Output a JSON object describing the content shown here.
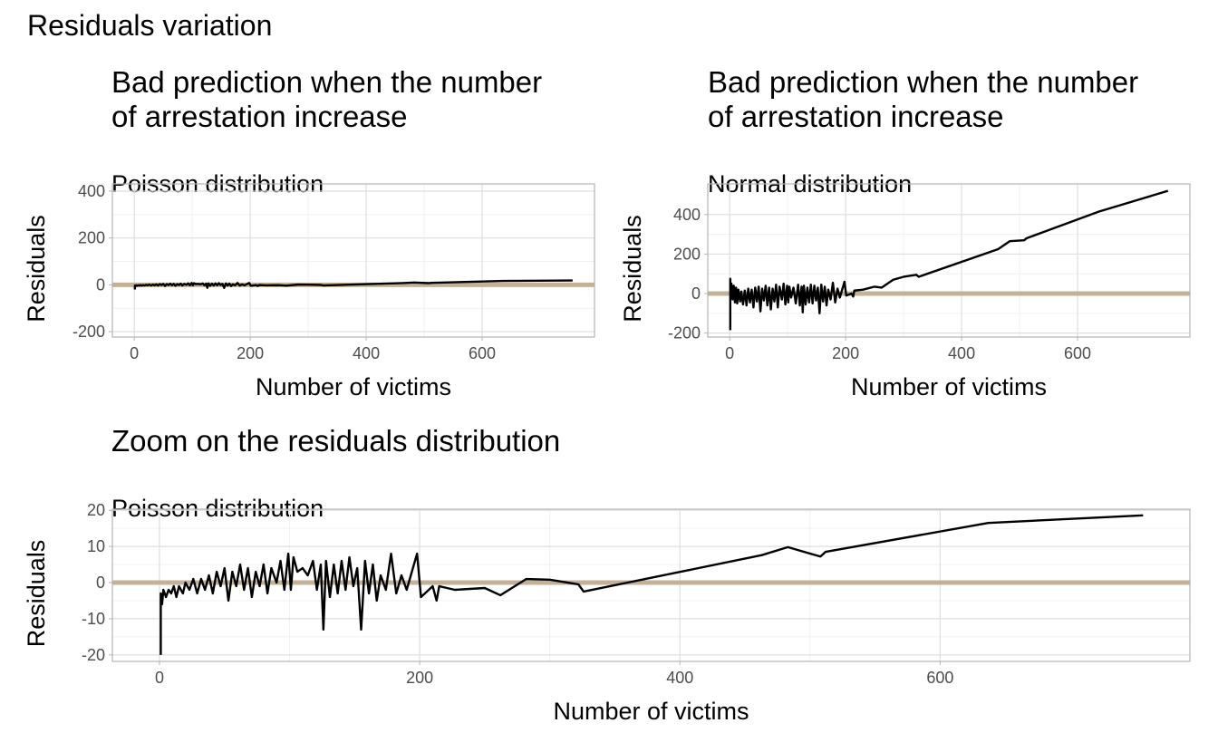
{
  "title": "Residuals variation",
  "chart_data": [
    {
      "type": "line",
      "title": [
        "Bad prediction when the number",
        "of arrestation increase"
      ],
      "subtitle": "Poisson distribution",
      "xlabel": "Number of victims",
      "ylabel": "Residuals",
      "x": [
        1,
        1,
        2,
        3,
        5,
        7,
        9,
        11,
        13,
        15,
        18,
        20,
        23,
        26,
        29,
        32,
        35,
        38,
        41,
        44,
        47,
        50,
        53,
        56,
        59,
        62,
        65,
        68,
        71,
        74,
        77,
        80,
        83,
        86,
        90,
        93,
        96,
        99,
        101,
        103,
        106,
        110,
        114,
        118,
        121,
        124,
        126,
        128,
        131,
        134,
        137,
        140,
        143,
        146,
        149,
        152,
        155,
        158,
        161,
        164,
        167,
        170,
        174,
        178,
        182,
        186,
        190,
        198,
        201,
        210,
        213,
        215,
        227,
        250,
        262,
        282,
        300,
        322,
        326,
        463,
        483,
        508,
        512,
        637,
        756
      ],
      "series": [
        {
          "color": "#000000",
          "values": [
            -20,
            -3,
            -6,
            -2,
            -4,
            -2,
            -3,
            -1,
            -4,
            -1,
            -3,
            0,
            -2,
            1,
            -3,
            1,
            -2,
            2,
            -3,
            3,
            -1,
            4,
            -5,
            3,
            -1,
            5,
            -2,
            4,
            -4,
            3,
            -1,
            5,
            -3,
            4,
            0,
            6,
            -2,
            8,
            -2,
            7,
            3,
            4,
            2,
            6,
            -2,
            5,
            -13,
            6,
            -4,
            5,
            -3,
            6,
            -2,
            7,
            -1,
            4,
            -13,
            6,
            -3,
            5,
            -5,
            2,
            -2,
            8,
            -3,
            2,
            -2,
            8,
            -4,
            -1,
            -5,
            -1,
            -2,
            -1.5,
            -3.5,
            1,
            0.8,
            -0.5,
            -2.5,
            7.6,
            9.8,
            7.2,
            8.5,
            16.5,
            18.6
          ]
        }
      ],
      "xlim": [
        -37.8,
        793.8
      ],
      "ylim": [
        -223,
        431
      ],
      "xticks": [
        0,
        200,
        400,
        600
      ],
      "yticks": [
        -200,
        0,
        200,
        400
      ],
      "grid": true,
      "hline": 0,
      "hline_color": "#c4b096"
    },
    {
      "type": "line",
      "title": [
        "Bad prediction when the number",
        "of arrestation increase"
      ],
      "subtitle": "Normal distribution",
      "xlabel": "Number of victims",
      "ylabel": "Residuals",
      "x": [
        1,
        1,
        2,
        3,
        5,
        7,
        9,
        11,
        13,
        15,
        18,
        20,
        23,
        26,
        29,
        32,
        35,
        38,
        41,
        44,
        47,
        50,
        53,
        56,
        59,
        62,
        65,
        68,
        71,
        74,
        77,
        80,
        83,
        86,
        90,
        93,
        96,
        99,
        101,
        103,
        106,
        110,
        114,
        118,
        121,
        124,
        126,
        128,
        131,
        134,
        137,
        140,
        143,
        146,
        149,
        152,
        155,
        158,
        161,
        164,
        167,
        170,
        174,
        178,
        182,
        186,
        190,
        198,
        201,
        210,
        213,
        215,
        230,
        250,
        262,
        282,
        300,
        322,
        326,
        463,
        483,
        508,
        512,
        637,
        756
      ],
      "series": [
        {
          "color": "#000000",
          "values": [
            -185,
            75,
            -20,
            50,
            -30,
            40,
            -45,
            30,
            -50,
            20,
            -40,
            10,
            -55,
            15,
            -60,
            25,
            -45,
            20,
            -70,
            30,
            -40,
            35,
            -90,
            25,
            -35,
            40,
            -60,
            30,
            -80,
            25,
            -40,
            45,
            -70,
            35,
            -30,
            50,
            -55,
            40,
            -45,
            35,
            -20,
            30,
            -50,
            45,
            -60,
            35,
            -95,
            40,
            -55,
            30,
            -45,
            45,
            -50,
            40,
            -35,
            30,
            -100,
            45,
            -40,
            35,
            -60,
            20,
            -30,
            55,
            -45,
            25,
            -20,
            60,
            -10,
            0,
            -15,
            15,
            20,
            35,
            30,
            70,
            85,
            95,
            85,
            225,
            265,
            270,
            280,
            415,
            520
          ]
        }
      ],
      "xlim": [
        -37.8,
        793.8
      ],
      "ylim": [
        -220,
        555
      ],
      "xticks": [
        0,
        200,
        400,
        600
      ],
      "yticks": [
        -200,
        0,
        200,
        400
      ],
      "grid": true,
      "hline": 0,
      "hline_color": "#c4b096"
    },
    {
      "type": "line",
      "title": [
        "Zoom on the residuals distribution"
      ],
      "subtitle": "Poisson distribution",
      "xlabel": "Number of victims",
      "ylabel": "Residuals",
      "x": [
        1,
        1,
        2,
        3,
        5,
        7,
        9,
        11,
        13,
        15,
        18,
        20,
        23,
        26,
        29,
        32,
        35,
        38,
        41,
        44,
        47,
        50,
        53,
        56,
        59,
        62,
        65,
        68,
        71,
        74,
        77,
        80,
        83,
        86,
        90,
        93,
        96,
        99,
        101,
        103,
        106,
        110,
        114,
        118,
        121,
        124,
        126,
        128,
        131,
        134,
        137,
        140,
        143,
        146,
        149,
        152,
        155,
        158,
        161,
        164,
        167,
        170,
        174,
        178,
        182,
        186,
        190,
        198,
        201,
        210,
        213,
        215,
        227,
        250,
        262,
        282,
        300,
        322,
        326,
        463,
        483,
        508,
        512,
        637,
        756
      ],
      "series": [
        {
          "color": "#000000",
          "values": [
            -20,
            -3,
            -6,
            -2,
            -4,
            -2,
            -3,
            -1,
            -4,
            -1,
            -3,
            0,
            -2,
            1,
            -3,
            1,
            -2,
            2,
            -3,
            3,
            -1,
            4,
            -5,
            3,
            -1,
            5,
            -2,
            4,
            -4,
            3,
            -1,
            5,
            -3,
            4,
            0,
            6,
            -2,
            8,
            -2,
            7,
            3,
            4,
            2,
            6,
            -2,
            5,
            -13,
            6,
            -4,
            5,
            -3,
            6,
            -2,
            7,
            -1,
            4,
            -13,
            6,
            -3,
            5,
            -5,
            2,
            -2,
            8,
            -3,
            2,
            -2,
            8,
            -4,
            -1,
            -5,
            -1,
            -2,
            -1.5,
            -3.5,
            1,
            0.8,
            -0.5,
            -2.5,
            7.6,
            9.8,
            7.2,
            8.5,
            16.5,
            18.6
          ]
        }
      ],
      "xlim": [
        -36.2,
        792
      ],
      "ylim": [
        -21.8,
        20.3
      ],
      "xticks": [
        0,
        200,
        400,
        600
      ],
      "yticks": [
        -20,
        -10,
        0,
        10,
        20
      ],
      "grid": true,
      "hline": 0,
      "hline_color": "#c4b096"
    }
  ]
}
